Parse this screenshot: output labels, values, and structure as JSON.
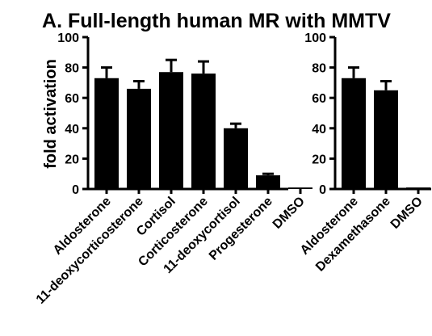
{
  "chart_data": {
    "title": "A. Full-length human MR with MMTV",
    "panels": [
      {
        "type": "bar",
        "ylabel": "fold activation",
        "ylim": [
          0,
          100
        ],
        "yticks": [
          "0",
          "20",
          "40",
          "60",
          "80",
          "100"
        ],
        "categories": [
          "Aldosterone",
          "11-deoxycorticosterone",
          "Cortisol",
          "Corticosterone",
          "11-deoxycortisol",
          "Progesterone",
          "DMSO"
        ],
        "values": [
          73,
          66,
          77,
          76,
          40,
          9,
          1
        ],
        "errors": [
          7,
          5,
          8,
          8,
          3,
          1,
          0
        ],
        "bar_color": "#000000",
        "grid": false
      },
      {
        "type": "bar",
        "ylabel": "",
        "ylim": [
          0,
          100
        ],
        "yticks": [
          "0",
          "20",
          "40",
          "60",
          "80",
          "100"
        ],
        "categories": [
          "Aldosterone",
          "Dexamethasone",
          "DMSO"
        ],
        "values": [
          73,
          65,
          1
        ],
        "errors": [
          7,
          6,
          0
        ],
        "bar_color": "#000000",
        "grid": false
      }
    ]
  }
}
